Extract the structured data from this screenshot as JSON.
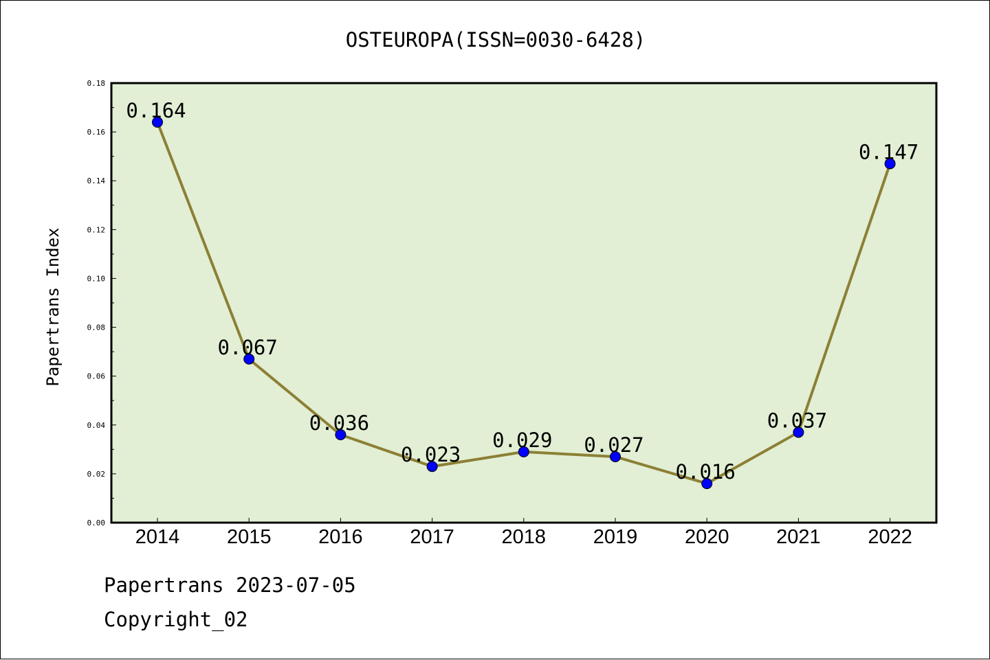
{
  "chart_data": {
    "type": "line",
    "title": "OSTEUROPA(ISSN=0030-6428)",
    "xlabel": "",
    "ylabel": "Papertrans Index",
    "categories": [
      "2014",
      "2015",
      "2016",
      "2017",
      "2018",
      "2019",
      "2020",
      "2021",
      "2022"
    ],
    "values": [
      0.164,
      0.067,
      0.036,
      0.023,
      0.029,
      0.027,
      0.016,
      0.037,
      0.147
    ],
    "data_labels": [
      "0.164",
      "0.067",
      "0.036",
      "0.023",
      "0.029",
      "0.027",
      "0.016",
      "0.037",
      "0.147"
    ],
    "ylim": [
      0,
      0.18
    ],
    "yticks": [
      "0.00",
      "0.02",
      "0.04",
      "0.06",
      "0.08",
      "0.10",
      "0.12",
      "0.14",
      "0.16",
      "0.18"
    ],
    "grid": false,
    "legend": "none",
    "colors": {
      "line": "#8c8035",
      "marker": "#0000ff",
      "plot_background": "#e2efd5",
      "frame": "#000000"
    }
  },
  "footer": {
    "date_line": "Papertrans 2023-07-05",
    "copyright": "Copyright_02"
  }
}
